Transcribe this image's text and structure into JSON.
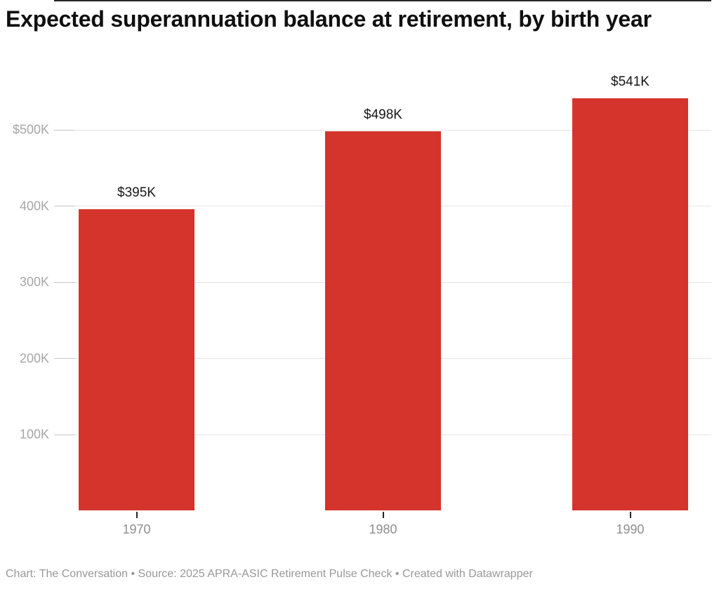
{
  "title": "Expected superannuation balance at retirement, by birth year",
  "footer": "Chart: The Conversation • Source: 2025 APRA-ASIC Retirement Pulse Check • Created with Datawrapper",
  "colors": {
    "bar": "#d4342b",
    "title_text": "#0f0f0f",
    "axis_label": "#a6a6a6",
    "category_label": "#8e8e8e",
    "baseline": "#262626",
    "gridline": "#e4e4e4"
  },
  "chart_data": {
    "type": "bar",
    "title": "Expected superannuation balance at retirement, by birth year",
    "categories": [
      "1970",
      "1980",
      "1990"
    ],
    "values": [
      395,
      498,
      541
    ],
    "value_labels": [
      "$395K",
      "$498K",
      "$541K"
    ],
    "xlabel": "",
    "ylabel": "",
    "ylim": [
      0,
      550
    ],
    "y_unit": "K",
    "y_ticks": [
      {
        "value": 500,
        "label": "$500K"
      },
      {
        "value": 400,
        "label": "400K"
      },
      {
        "value": 300,
        "label": "300K"
      },
      {
        "value": 200,
        "label": "200K"
      },
      {
        "value": 100,
        "label": "100K"
      }
    ],
    "grid": "horizontal",
    "legend": "none"
  }
}
